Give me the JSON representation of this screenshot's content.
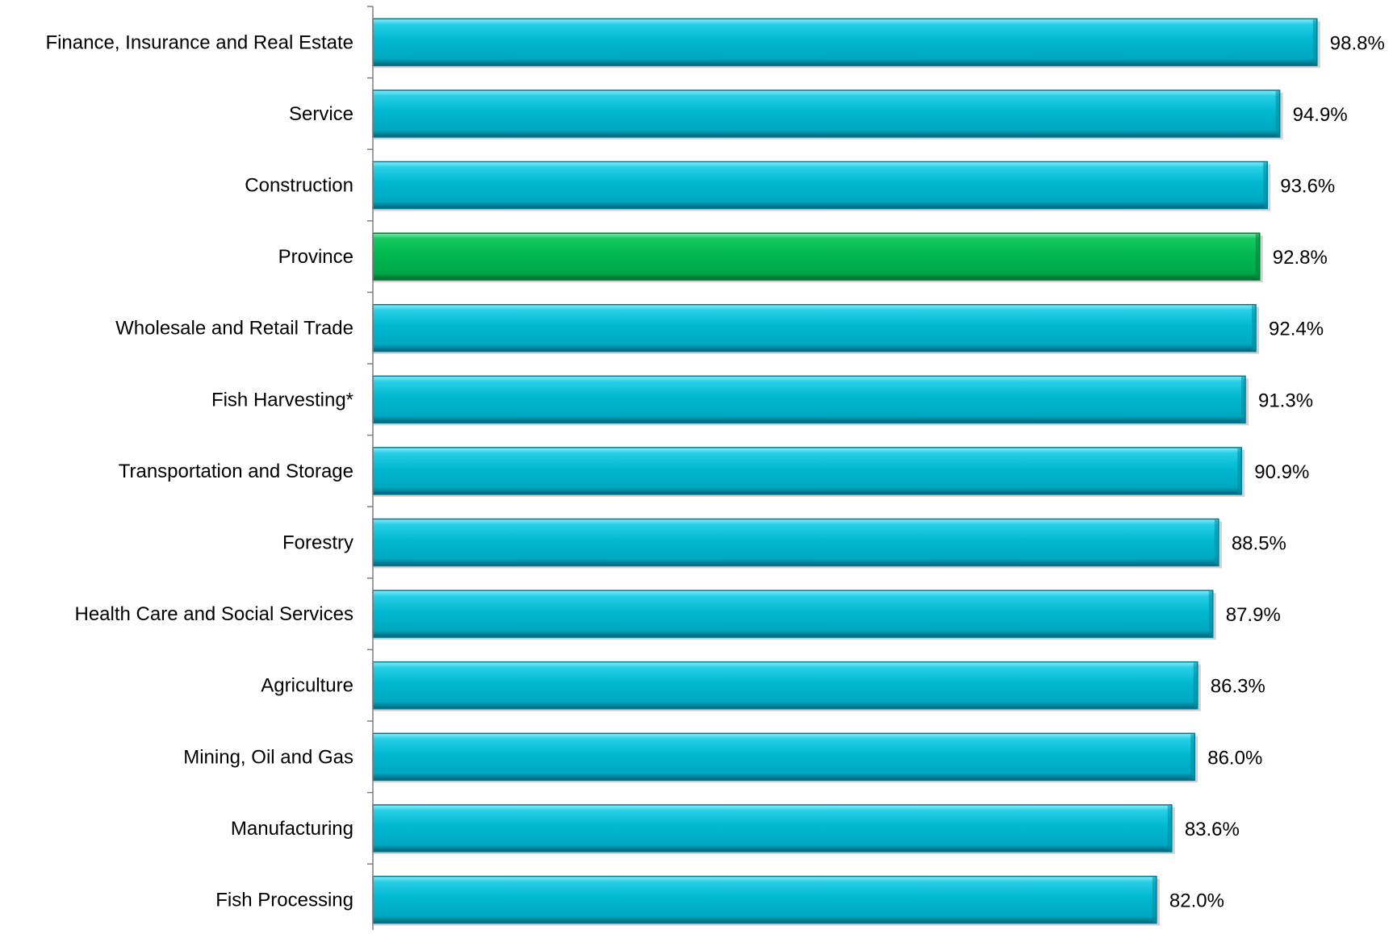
{
  "chart_data": {
    "type": "bar",
    "orientation": "horizontal",
    "categories": [
      "Finance, Insurance and Real Estate",
      "Service",
      "Construction",
      "Province",
      "Wholesale and Retail Trade",
      "Fish Harvesting*",
      "Transportation and Storage",
      "Forestry",
      "Health Care and Social Services",
      "Agriculture",
      "Mining, Oil and Gas",
      "Manufacturing",
      "Fish Processing"
    ],
    "values": [
      98.8,
      94.9,
      93.6,
      92.8,
      92.4,
      91.3,
      90.9,
      88.5,
      87.9,
      86.3,
      86.0,
      83.6,
      82.0
    ],
    "value_labels": [
      "98.8%",
      "94.9%",
      "93.6%",
      "92.8%",
      "92.4%",
      "91.3%",
      "90.9%",
      "88.5%",
      "87.9%",
      "86.3%",
      "86.0%",
      "83.6%",
      "82.0%"
    ],
    "highlight_index": 3,
    "colors": {
      "bar": "#00b4cc",
      "bar_highlight": "#00b050",
      "axis": "#7f7f7f"
    },
    "xlim": [
      0,
      100
    ],
    "grid": false,
    "legend": "none"
  }
}
